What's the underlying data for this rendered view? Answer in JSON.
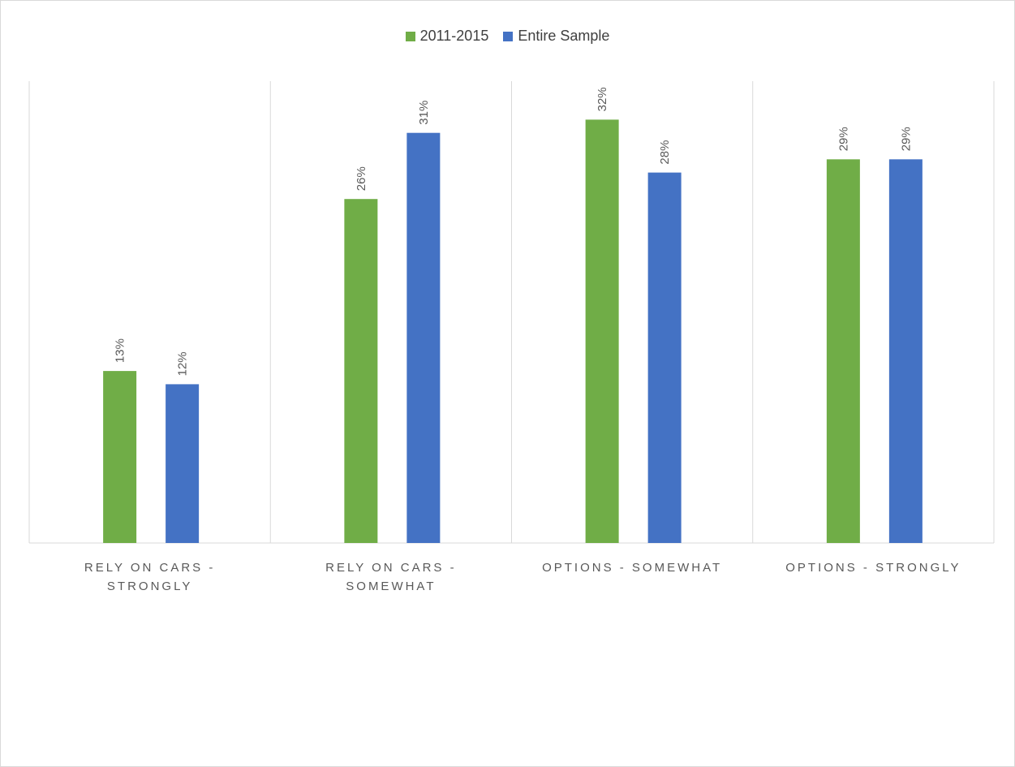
{
  "chart_data": {
    "type": "bar",
    "categories": [
      [
        "RELY ON CARS -",
        "STRONGLY"
      ],
      [
        "RELY ON CARS -",
        "SOMEWHAT"
      ],
      [
        "OPTIONS - SOMEWHAT"
      ],
      [
        "OPTIONS - STRONGLY"
      ]
    ],
    "series": [
      {
        "name": "2011-2015",
        "color": "#70ad47",
        "values": [
          13,
          26,
          32,
          29
        ],
        "labels": [
          "13%",
          "26%",
          "32%",
          "29%"
        ]
      },
      {
        "name": "Entire Sample",
        "color": "#4472c4",
        "values": [
          12,
          31,
          28,
          29
        ],
        "labels": [
          "12%",
          "31%",
          "28%",
          "29%"
        ]
      }
    ],
    "ylim": [
      0,
      36
    ],
    "grid": false,
    "legend_position": "top"
  }
}
